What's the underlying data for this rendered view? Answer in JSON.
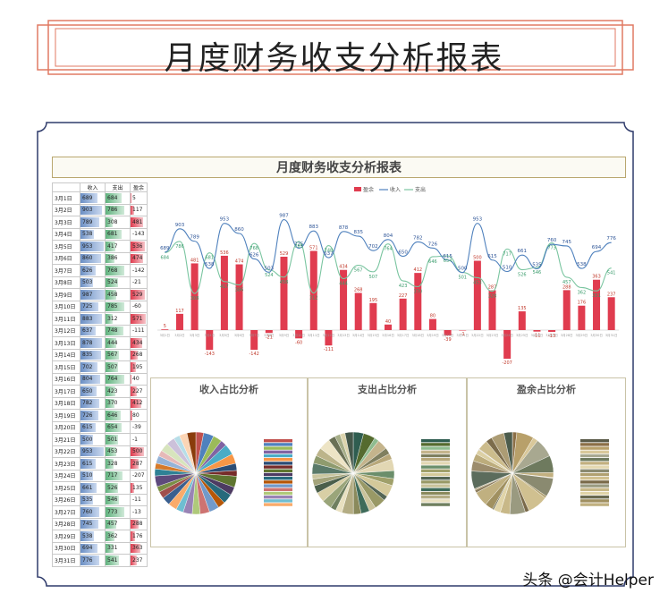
{
  "page_title": "月度财务收支分析报表",
  "sheet_title": "月度财务收支分析报表",
  "table": {
    "headers": [
      "",
      "收入",
      "支出",
      "盈余"
    ],
    "rows": [
      [
        "3月1日",
        689,
        684,
        5
      ],
      [
        "3月2日",
        903,
        786,
        117
      ],
      [
        "3月3日",
        789,
        308,
        481
      ],
      [
        "3月4日",
        538,
        681,
        -143
      ],
      [
        "3月5日",
        953,
        417,
        536
      ],
      [
        "3月6日",
        860,
        386,
        474
      ],
      [
        "3月7日",
        626,
        768,
        -142
      ],
      [
        "3月8日",
        503,
        524,
        -21
      ],
      [
        "3月9日",
        987,
        458,
        529
      ],
      [
        "3月10日",
        725,
        785,
        -60
      ],
      [
        "3月11日",
        883,
        312,
        571
      ],
      [
        "3月12日",
        637,
        748,
        -111
      ],
      [
        "3月13日",
        878,
        444,
        434
      ],
      [
        "3月14日",
        835,
        567,
        268
      ],
      [
        "3月15日",
        702,
        507,
        195
      ],
      [
        "3月16日",
        804,
        764,
        40
      ],
      [
        "3月17日",
        650,
        423,
        227
      ],
      [
        "3月18日",
        782,
        370,
        412
      ],
      [
        "3月19日",
        726,
        646,
        80
      ],
      [
        "3月20日",
        615,
        654,
        -39
      ],
      [
        "3月21日",
        500,
        501,
        -1
      ],
      [
        "3月22日",
        953,
        453,
        500
      ],
      [
        "3月23日",
        615,
        328,
        287
      ],
      [
        "3月24日",
        510,
        717,
        -207
      ],
      [
        "3月25日",
        661,
        526,
        135
      ],
      [
        "3月26日",
        535,
        546,
        -11
      ],
      [
        "3月27日",
        760,
        773,
        -13
      ],
      [
        "3月28日",
        745,
        457,
        288
      ],
      [
        "3月29日",
        538,
        362,
        176
      ],
      [
        "3月30日",
        694,
        331,
        363
      ],
      [
        "3月31日",
        776,
        541,
        237
      ]
    ]
  },
  "legend": {
    "surplus": "盈余",
    "income": "收入",
    "expense": "支出"
  },
  "colors": {
    "income": "#4f81bd",
    "expense": "#7ac5a0",
    "surplus": "#e03c4f",
    "frame": "#e07a63"
  },
  "pies": {
    "income_title": "收入占比分析",
    "expense_title": "支出占比分析",
    "surplus_title": "盈余占比分析"
  },
  "watermark": "头条 @会计Helper",
  "chart_data": {
    "type": "bar",
    "categories": [
      "3月1日",
      "3月2日",
      "3月3日",
      "3月4日",
      "3月5日",
      "3月6日",
      "3月7日",
      "3月8日",
      "3月9日",
      "3月10日",
      "3月11日",
      "3月12日",
      "3月13日",
      "3月14日",
      "3月15日",
      "3月16日",
      "3月17日",
      "3月18日",
      "3月19日",
      "3月20日",
      "3月21日",
      "3月22日",
      "3月23日",
      "3月24日",
      "3月25日",
      "3月26日",
      "3月27日",
      "3月28日",
      "3月29日",
      "3月30日",
      "3月31日"
    ],
    "series": [
      {
        "name": "盈余",
        "type": "bar",
        "values": [
          5,
          117,
          481,
          -143,
          536,
          474,
          -142,
          -21,
          529,
          -60,
          571,
          -111,
          434,
          268,
          195,
          40,
          227,
          412,
          80,
          -39,
          -1,
          500,
          287,
          -207,
          135,
          -11,
          -13,
          288,
          176,
          363,
          237
        ]
      },
      {
        "name": "收入",
        "type": "line",
        "values": [
          689,
          903,
          789,
          538,
          953,
          860,
          626,
          503,
          987,
          725,
          883,
          637,
          878,
          835,
          702,
          804,
          650,
          782,
          726,
          615,
          500,
          953,
          615,
          510,
          661,
          535,
          760,
          745,
          538,
          694,
          776
        ]
      },
      {
        "name": "支出",
        "type": "line",
        "values": [
          684,
          786,
          308,
          681,
          417,
          386,
          768,
          524,
          458,
          785,
          312,
          748,
          444,
          567,
          507,
          764,
          423,
          370,
          646,
          654,
          501,
          453,
          328,
          717,
          526,
          546,
          773,
          457,
          362,
          331,
          541
        ]
      }
    ]
  }
}
